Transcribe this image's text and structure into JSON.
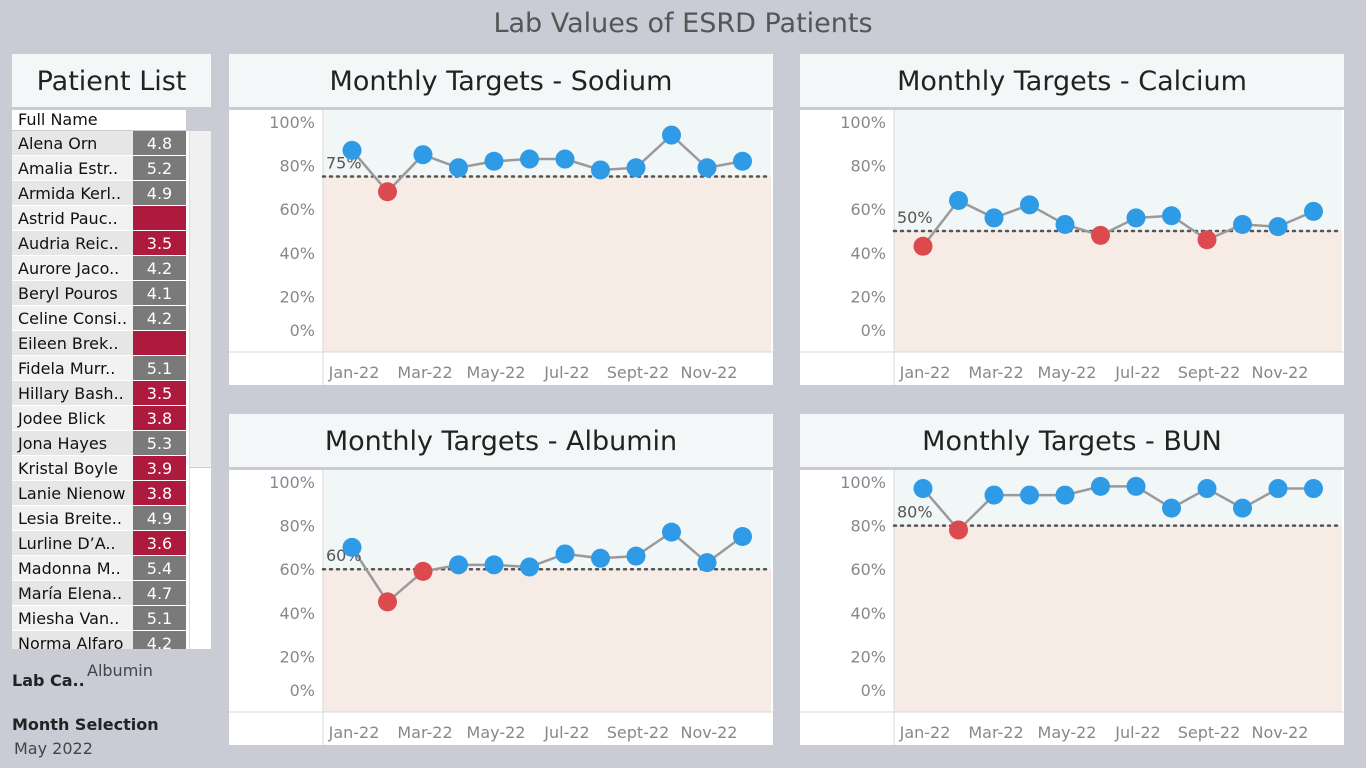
{
  "title": "Lab Values of ESRD Patients",
  "patient_list": {
    "title": "Patient List",
    "column_header": "Full Name",
    "rows": [
      {
        "name": "Alena Orn",
        "value": "4.8",
        "status": "ok"
      },
      {
        "name": "Amalia Estr..",
        "value": "5.2",
        "status": "ok"
      },
      {
        "name": "Armida Kerl..",
        "value": "4.9",
        "status": "ok"
      },
      {
        "name": "Astrid Pauc..",
        "value": "",
        "status": "low"
      },
      {
        "name": "Audria Reic..",
        "value": "3.5",
        "status": "low"
      },
      {
        "name": "Aurore Jaco..",
        "value": "4.2",
        "status": "ok"
      },
      {
        "name": "Beryl Pouros",
        "value": "4.1",
        "status": "ok"
      },
      {
        "name": "Celine Consi..",
        "value": "4.2",
        "status": "ok"
      },
      {
        "name": "Eileen Brek..",
        "value": "",
        "status": "low"
      },
      {
        "name": "Fidela Murr..",
        "value": "5.1",
        "status": "ok"
      },
      {
        "name": "Hillary Bash..",
        "value": "3.5",
        "status": "low"
      },
      {
        "name": "Jodee Blick",
        "value": "3.8",
        "status": "low"
      },
      {
        "name": "Jona Hayes",
        "value": "5.3",
        "status": "ok"
      },
      {
        "name": "Kristal Boyle",
        "value": "3.9",
        "status": "low"
      },
      {
        "name": "Lanie Nienow",
        "value": "3.8",
        "status": "low"
      },
      {
        "name": "Lesia Breite..",
        "value": "4.9",
        "status": "ok"
      },
      {
        "name": "Lurline D’A..",
        "value": "3.6",
        "status": "low"
      },
      {
        "name": "Madonna M..",
        "value": "5.4",
        "status": "ok"
      },
      {
        "name": "María Elena..",
        "value": "4.7",
        "status": "ok"
      },
      {
        "name": "Miesha Van..",
        "value": "5.1",
        "status": "ok"
      },
      {
        "name": "Norma Alfaro",
        "value": "4.2",
        "status": "ok"
      }
    ]
  },
  "filters": {
    "lab_category_label": "Lab Ca..",
    "lab_category_value": "Albumin",
    "month_label": "Month Selection",
    "month_value": "May 2022"
  },
  "colors": {
    "ok_cell": "#7a7a7a",
    "low_cell": "#ad1a3d",
    "above_point": "#2f9be6",
    "below_point": "#dc4a4f",
    "above_band": "#f1f6f6",
    "below_band": "#f7ebe6",
    "line": "#9a9a9a"
  },
  "chart_data": [
    {
      "type": "line",
      "title": "Monthly Targets - Sodium",
      "x": [
        "Jan-22",
        "Feb-22",
        "Mar-22",
        "Apr-22",
        "May-22",
        "Jun-22",
        "Jul-22",
        "Aug-22",
        "Sept-22",
        "Oct-22",
        "Nov-22",
        "Dec-22"
      ],
      "x_tick_labels": [
        "Jan-22",
        "Mar-22",
        "May-22",
        "Jul-22",
        "Sept-22",
        "Nov-22"
      ],
      "values": [
        87,
        68,
        85,
        79,
        82,
        83,
        83,
        78,
        79,
        94,
        79,
        82
      ],
      "target": 75,
      "target_label": "75%",
      "y_ticks": [
        "100%",
        "80%",
        "60%",
        "40%",
        "20%",
        "0%"
      ],
      "ylim": [
        0,
        100
      ]
    },
    {
      "type": "line",
      "title": "Monthly Targets - Calcium",
      "x": [
        "Jan-22",
        "Feb-22",
        "Mar-22",
        "Apr-22",
        "May-22",
        "Jun-22",
        "Jul-22",
        "Aug-22",
        "Sept-22",
        "Oct-22",
        "Nov-22",
        "Dec-22"
      ],
      "x_tick_labels": [
        "Jan-22",
        "Mar-22",
        "May-22",
        "Jul-22",
        "Sept-22",
        "Nov-22"
      ],
      "values": [
        43,
        64,
        56,
        62,
        53,
        48,
        56,
        57,
        46,
        53,
        52,
        59
      ],
      "target": 50,
      "target_label": "50%",
      "y_ticks": [
        "100%",
        "80%",
        "60%",
        "40%",
        "20%",
        "0%"
      ],
      "ylim": [
        0,
        100
      ]
    },
    {
      "type": "line",
      "title": "Monthly Targets - Albumin",
      "x": [
        "Jan-22",
        "Feb-22",
        "Mar-22",
        "Apr-22",
        "May-22",
        "Jun-22",
        "Jul-22",
        "Aug-22",
        "Sept-22",
        "Oct-22",
        "Nov-22",
        "Dec-22"
      ],
      "x_tick_labels": [
        "Jan-22",
        "Mar-22",
        "May-22",
        "Jul-22",
        "Sept-22",
        "Nov-22"
      ],
      "values": [
        70,
        45,
        59,
        62,
        62,
        61,
        67,
        65,
        66,
        77,
        63,
        75
      ],
      "target": 60,
      "target_label": "60%",
      "y_ticks": [
        "100%",
        "80%",
        "60%",
        "40%",
        "20%",
        "0%"
      ],
      "ylim": [
        0,
        100
      ]
    },
    {
      "type": "line",
      "title": "Monthly Targets - BUN",
      "x": [
        "Jan-22",
        "Feb-22",
        "Mar-22",
        "Apr-22",
        "May-22",
        "Jun-22",
        "Jul-22",
        "Aug-22",
        "Sept-22",
        "Oct-22",
        "Nov-22",
        "Dec-22"
      ],
      "x_tick_labels": [
        "Jan-22",
        "Mar-22",
        "May-22",
        "Jul-22",
        "Sept-22",
        "Nov-22"
      ],
      "values": [
        97,
        78,
        94,
        94,
        94,
        98,
        98,
        88,
        97,
        88,
        97,
        97
      ],
      "target": 80,
      "target_label": "80%",
      "y_ticks": [
        "100%",
        "80%",
        "60%",
        "40%",
        "20%",
        "0%"
      ],
      "ylim": [
        0,
        100
      ]
    }
  ]
}
